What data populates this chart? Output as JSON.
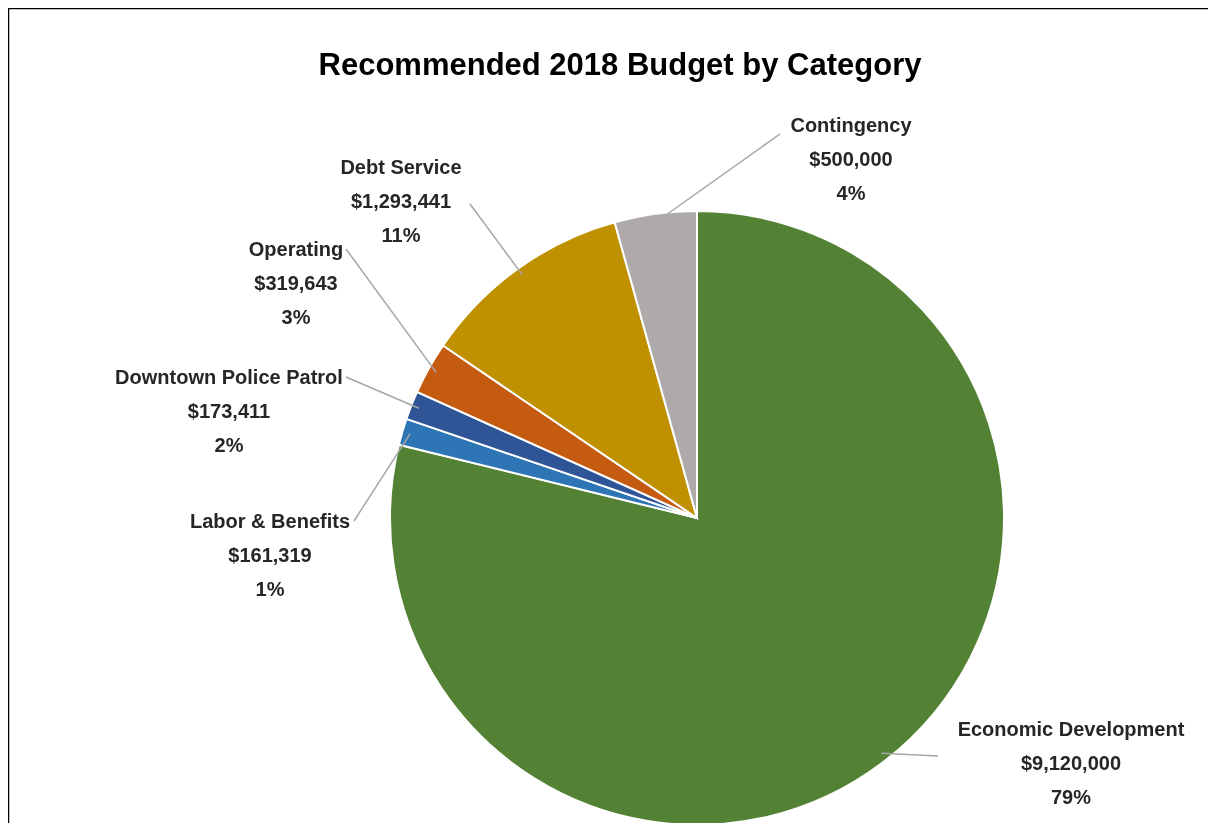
{
  "chart_data": {
    "type": "pie",
    "title": "Recommended 2018 Budget by Category",
    "categories": [
      "Economic Development",
      "Labor & Benefits",
      "Downtown Police Patrol",
      "Operating",
      "Debt Service",
      "Contingency"
    ],
    "values": [
      9120000,
      161319,
      173411,
      319643,
      1293441,
      500000
    ],
    "colors": [
      "#548235",
      "#2e75b6",
      "#2f5597",
      "#c55a11",
      "#bf9000",
      "#aeaaaa"
    ],
    "value_labels": [
      "$9,120,000\n79%",
      "$161,319\n1%",
      "$173,411\n2%",
      "$319,643\n3%",
      "$1,293,441\n11%",
      "$500,000\n4%"
    ]
  }
}
